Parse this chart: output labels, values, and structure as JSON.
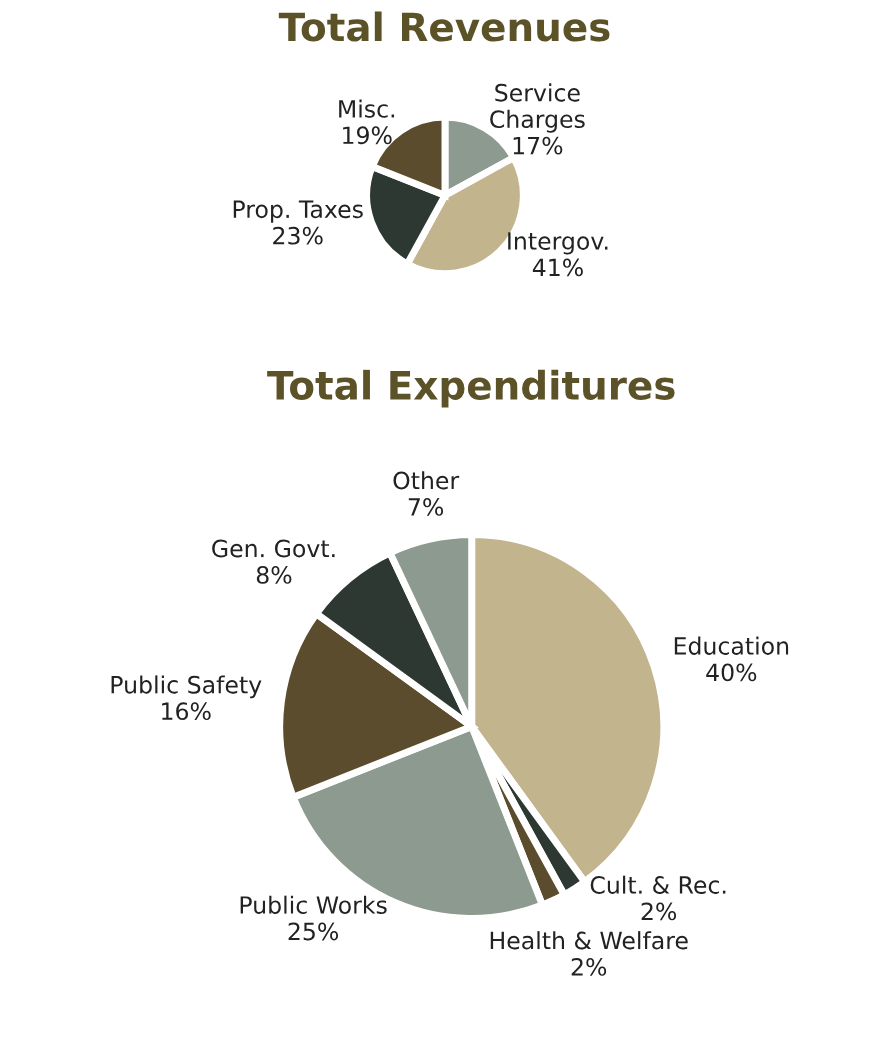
{
  "chart_data": [
    {
      "type": "pie",
      "title": "Total Revenues",
      "categories": [
        "Service Charges",
        "Intergov.",
        "Prop. Taxes",
        "Misc."
      ],
      "values": [
        17,
        41,
        23,
        19
      ],
      "value_labels": [
        "17%",
        "41%",
        "23%",
        "19%"
      ],
      "colors": [
        "#8c9a90",
        "#c2b48c",
        "#2e3832",
        "#5b4c2e"
      ]
    },
    {
      "type": "pie",
      "title": "Total Expenditures",
      "categories": [
        "Education",
        "Cult. & Rec.",
        "Health & Welfare",
        "Public Works",
        "Public Safety",
        "Gen. Govt.",
        "Other"
      ],
      "values": [
        40,
        2,
        2,
        25,
        16,
        8,
        7
      ],
      "value_labels": [
        "40%",
        "2%",
        "2%",
        "25%",
        "16%",
        "8%",
        "7%"
      ],
      "colors": [
        "#c2b48c",
        "#2e3832",
        "#5b4c2e",
        "#8c9a90",
        "#5b4c2e",
        "#2e3832",
        "#8c9a90"
      ]
    }
  ]
}
